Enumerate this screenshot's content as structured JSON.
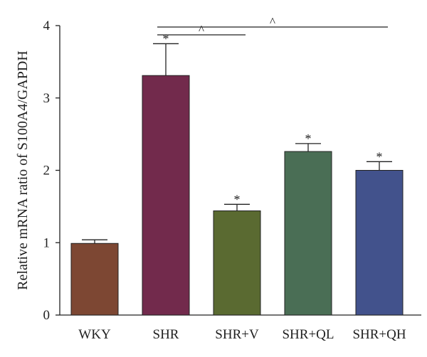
{
  "chart_data": {
    "type": "bar",
    "title": "",
    "xlabel": "",
    "ylabel": "Relative mRNA ratio of S100A4/GAPDH",
    "ylim": [
      0,
      4
    ],
    "yticks": [
      0,
      1,
      2,
      3,
      4
    ],
    "categories": [
      "WKY",
      "SHR",
      "SHR+V",
      "SHR+QL",
      "SHR+QH"
    ],
    "values": [
      0.99,
      3.31,
      1.44,
      2.26,
      2.0
    ],
    "errors": [
      0.05,
      0.44,
      0.09,
      0.11,
      0.12
    ],
    "colors": [
      "#7d4733",
      "#722a4c",
      "#5a6a31",
      "#4a6e55",
      "#42528c"
    ],
    "significance_marks": [
      "",
      "*",
      "*",
      "*",
      "*"
    ],
    "comparison_brackets": [
      {
        "from": "SHR",
        "to": "SHR+V",
        "mark": "^"
      },
      {
        "from": "SHR",
        "to": "SHR+QH",
        "mark": "^"
      }
    ],
    "grid": false,
    "legend": "none"
  }
}
